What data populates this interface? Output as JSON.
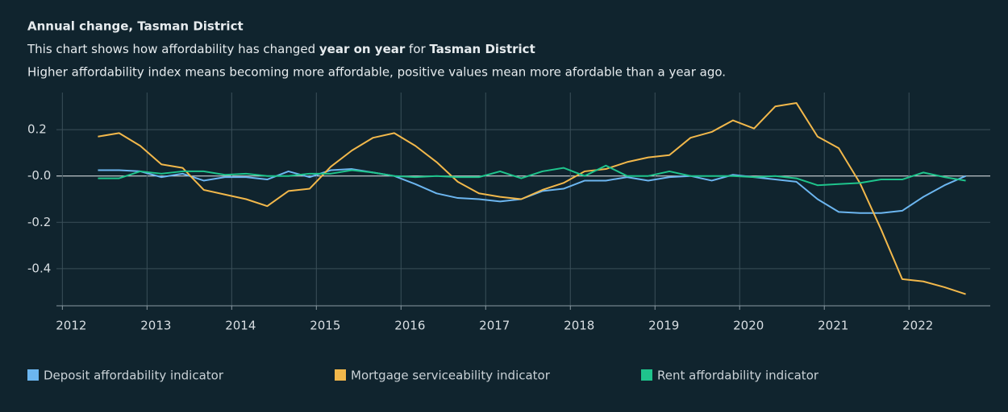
{
  "chart_data": {
    "type": "line",
    "title": "Annual change, Tasman District",
    "subtitle": [
      {
        "text": "This chart shows how affordability has changed ",
        "bold": false
      },
      {
        "text": "year on year",
        "bold": true
      },
      {
        "text": " for ",
        "bold": false
      },
      {
        "text": "Tasman District",
        "bold": true
      }
    ],
    "note": "Higher affordability index means becoming more affordable, positive values mean more afordable than a year ago.",
    "x": [
      2012.42,
      2012.67,
      2012.92,
      2013.17,
      2013.42,
      2013.67,
      2013.92,
      2014.17,
      2014.42,
      2014.67,
      2014.92,
      2015.17,
      2015.42,
      2015.67,
      2015.92,
      2016.17,
      2016.42,
      2016.67,
      2016.92,
      2017.17,
      2017.42,
      2017.67,
      2017.92,
      2018.17,
      2018.42,
      2018.67,
      2018.92,
      2019.17,
      2019.42,
      2019.67,
      2019.92,
      2020.17,
      2020.42,
      2020.67,
      2020.92,
      2021.17,
      2021.42,
      2021.67,
      2021.92,
      2022.17,
      2022.42,
      2022.67
    ],
    "series": [
      {
        "name": "Deposit affordability indicator",
        "color": "#6cb6f0",
        "values": [
          0.025,
          0.025,
          0.02,
          -0.005,
          0.01,
          -0.02,
          -0.005,
          -0.005,
          -0.015,
          0.02,
          -0.005,
          0.025,
          0.03,
          0.015,
          0.0,
          -0.035,
          -0.075,
          -0.095,
          -0.1,
          -0.11,
          -0.1,
          -0.065,
          -0.055,
          -0.02,
          -0.02,
          -0.005,
          -0.02,
          -0.005,
          0.0,
          -0.02,
          0.005,
          -0.005,
          -0.015,
          -0.025,
          -0.1,
          -0.155,
          -0.16,
          -0.16,
          -0.15,
          -0.09,
          -0.04,
          0.0
        ]
      },
      {
        "name": "Mortgage serviceability indicator",
        "color": "#f2b84b",
        "values": [
          0.17,
          0.185,
          0.13,
          0.05,
          0.035,
          -0.06,
          -0.08,
          -0.1,
          -0.13,
          -0.065,
          -0.055,
          0.04,
          0.11,
          0.165,
          0.185,
          0.13,
          0.06,
          -0.025,
          -0.075,
          -0.09,
          -0.1,
          -0.06,
          -0.03,
          0.02,
          0.03,
          0.06,
          0.08,
          0.09,
          0.165,
          0.19,
          0.24,
          0.205,
          0.3,
          0.315,
          0.17,
          0.12,
          -0.03,
          -0.23,
          -0.445,
          -0.455,
          -0.48,
          -0.51
        ]
      },
      {
        "name": "Rent affordability indicator",
        "color": "#1fc48c",
        "values": [
          -0.01,
          -0.01,
          0.02,
          0.01,
          0.02,
          0.02,
          0.005,
          0.01,
          0.0,
          0.0,
          0.01,
          0.01,
          0.025,
          0.015,
          0.0,
          -0.005,
          0.0,
          -0.005,
          -0.005,
          0.02,
          -0.01,
          0.02,
          0.035,
          0.0,
          0.045,
          0.0,
          0.0,
          0.02,
          0.0,
          0.0,
          0.0,
          -0.005,
          0.0,
          -0.01,
          -0.04,
          -0.035,
          -0.03,
          -0.015,
          -0.015,
          0.015,
          -0.005,
          -0.02
        ]
      }
    ],
    "xlim": [
      2011.93,
      2022.96
    ],
    "xticks": [
      2012,
      2013,
      2014,
      2015,
      2016,
      2017,
      2018,
      2019,
      2020,
      2021,
      2022
    ],
    "ylim": [
      -0.56,
      0.36
    ],
    "yticks": [
      0.2,
      {
        "value": 0,
        "label": "-0.0"
      },
      -0.2,
      -0.4
    ],
    "grid": true
  }
}
